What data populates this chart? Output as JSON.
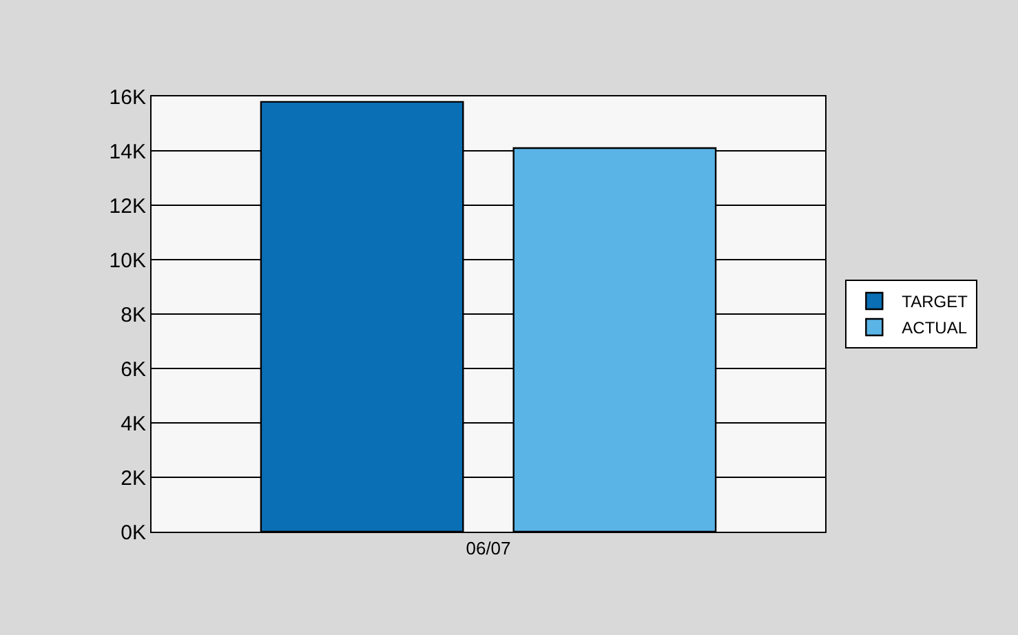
{
  "chart_data": {
    "type": "bar",
    "categories": [
      "06/07"
    ],
    "series": [
      {
        "name": "TARGET",
        "color": "#0a6fb4",
        "values": [
          15800
        ]
      },
      {
        "name": "ACTUAL",
        "color": "#5ab4e6",
        "values": [
          14100
        ]
      }
    ],
    "ylim": [
      0,
      16000
    ],
    "yticks": [
      {
        "value": 0,
        "label": "0K"
      },
      {
        "value": 2000,
        "label": "2K"
      },
      {
        "value": 4000,
        "label": "4K"
      },
      {
        "value": 6000,
        "label": "6K"
      },
      {
        "value": 8000,
        "label": "8K"
      },
      {
        "value": 10000,
        "label": "10K"
      },
      {
        "value": 12000,
        "label": "12K"
      },
      {
        "value": 14000,
        "label": "14K"
      },
      {
        "value": 16000,
        "label": "16K"
      }
    ],
    "grid": "y",
    "legend": "right"
  }
}
